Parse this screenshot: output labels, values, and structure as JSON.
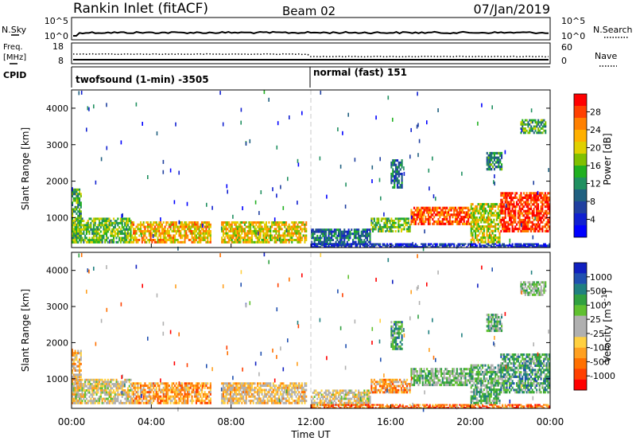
{
  "header": {
    "station": "Rankin Inlet (fitACF)",
    "beam": "Beam 02",
    "date": "07/Jan/2019"
  },
  "top_panels": {
    "nsky": {
      "left_label": "N.Sky",
      "right_label": "N.Search",
      "left_ticks": [
        "10^5",
        "10^0"
      ],
      "right_ticks": [
        "10^5",
        "10^0"
      ]
    },
    "freq": {
      "left_label_1": "Freq.",
      "left_label_2": "[MHz]",
      "right_label": "Nave",
      "left_ticks": [
        "18",
        "8"
      ],
      "right_ticks": [
        "60",
        "0"
      ]
    },
    "cpid": {
      "label": "CPID",
      "modes": [
        {
          "label": "twofsound (1-min) -3505",
          "start_hour": 0
        },
        {
          "label": "normal (fast) 151",
          "start_hour": 12
        }
      ]
    }
  },
  "chart_data": [
    {
      "type": "heatmap",
      "panel": "power",
      "ylabel": "Slant Range [km]",
      "xlabel": "",
      "x_range_hours": [
        0,
        24
      ],
      "ylim": [
        180,
        4500
      ],
      "yticks": [
        "1000",
        "2000",
        "3000",
        "4000"
      ],
      "colorbar": {
        "label": "Power [dB]",
        "ticks": [
          "28",
          "24",
          "20",
          "16",
          "12",
          "8",
          "4"
        ],
        "colors_top_to_bottom": [
          "#ff0000",
          "#ff4000",
          "#ff8000",
          "#ffb000",
          "#e0d000",
          "#80c000",
          "#20b020",
          "#209060",
          "#206080",
          "#2040a0",
          "#1020d0",
          "#0000ff"
        ]
      },
      "echo_regions": [
        {
          "x0": 0.0,
          "x1": 0.5,
          "y0": 300,
          "y1": 1800,
          "level": 0.45
        },
        {
          "x0": 0.0,
          "x1": 3.0,
          "y0": 300,
          "y1": 1000,
          "level": 0.5
        },
        {
          "x0": 3.0,
          "x1": 7.0,
          "y0": 300,
          "y1": 900,
          "level": 0.7
        },
        {
          "x0": 7.5,
          "x1": 11.8,
          "y0": 300,
          "y1": 900,
          "level": 0.65
        },
        {
          "x0": 12.0,
          "x1": 15.0,
          "y0": 250,
          "y1": 700,
          "level": 0.3
        },
        {
          "x0": 15.0,
          "x1": 17.0,
          "y0": 600,
          "y1": 1000,
          "level": 0.5
        },
        {
          "x0": 17.0,
          "x1": 20.0,
          "y0": 800,
          "y1": 1300,
          "level": 0.85
        },
        {
          "x0": 20.0,
          "x1": 21.5,
          "y0": 300,
          "y1": 1400,
          "level": 0.6
        },
        {
          "x0": 21.5,
          "x1": 24.0,
          "y0": 600,
          "y1": 1700,
          "level": 0.92
        },
        {
          "x0": 22.5,
          "x1": 23.8,
          "y0": 3300,
          "y1": 3700,
          "level": 0.45
        },
        {
          "x0": 20.8,
          "x1": 21.6,
          "y0": 2300,
          "y1": 2800,
          "level": 0.35
        },
        {
          "x0": 16.0,
          "x1": 16.6,
          "y0": 1800,
          "y1": 2600,
          "level": 0.3
        },
        {
          "x0": 12.0,
          "x1": 24.0,
          "y0": 180,
          "y1": 300,
          "level": 0.15
        }
      ]
    },
    {
      "type": "heatmap",
      "panel": "velocity",
      "ylabel": "Slant Range [km]",
      "xlabel": "Time UT",
      "x_range_hours": [
        0,
        24
      ],
      "xticks": [
        "00:00",
        "04:00",
        "08:00",
        "12:00",
        "16:00",
        "20:00",
        "00:00"
      ],
      "ylim": [
        180,
        4500
      ],
      "yticks": [
        "1000",
        "2000",
        "3000",
        "4000"
      ],
      "colorbar": {
        "label": "Velocity [m s^-1]",
        "ticks": [
          "1000",
          "500",
          "100",
          "25",
          "-25",
          "-100",
          "-500",
          "-1000"
        ],
        "colors_top_to_bottom": [
          "#1020c0",
          "#2050b0",
          "#208080",
          "#30a040",
          "#60c030",
          "#b0b0b0",
          "#b0b0b0",
          "#ffd040",
          "#ffa020",
          "#ff7000",
          "#ff4000",
          "#ff0000"
        ]
      },
      "echo_regions": [
        {
          "x0": 0.0,
          "x1": 0.5,
          "y0": 300,
          "y1": 1800,
          "level": 0.35
        },
        {
          "x0": 0.0,
          "x1": 3.0,
          "y0": 300,
          "y1": 1000,
          "level": 0.45
        },
        {
          "x0": 3.0,
          "x1": 7.0,
          "y0": 300,
          "y1": 900,
          "level": 0.3
        },
        {
          "x0": 7.5,
          "x1": 11.8,
          "y0": 300,
          "y1": 900,
          "level": 0.4
        },
        {
          "x0": 12.0,
          "x1": 15.0,
          "y0": 250,
          "y1": 700,
          "level": 0.45
        },
        {
          "x0": 15.0,
          "x1": 17.0,
          "y0": 600,
          "y1": 1000,
          "level": 0.3
        },
        {
          "x0": 17.0,
          "x1": 20.0,
          "y0": 800,
          "y1": 1300,
          "level": 0.6
        },
        {
          "x0": 20.0,
          "x1": 21.5,
          "y0": 300,
          "y1": 1400,
          "level": 0.65
        },
        {
          "x0": 21.5,
          "x1": 24.0,
          "y0": 600,
          "y1": 1700,
          "level": 0.7
        },
        {
          "x0": 22.5,
          "x1": 23.8,
          "y0": 3300,
          "y1": 3700,
          "level": 0.6
        },
        {
          "x0": 20.8,
          "x1": 21.6,
          "y0": 2300,
          "y1": 2800,
          "level": 0.65
        },
        {
          "x0": 16.0,
          "x1": 16.6,
          "y0": 1800,
          "y1": 2600,
          "level": 0.7
        },
        {
          "x0": 12.0,
          "x1": 24.0,
          "y0": 180,
          "y1": 300,
          "level": 0.2
        }
      ]
    }
  ]
}
